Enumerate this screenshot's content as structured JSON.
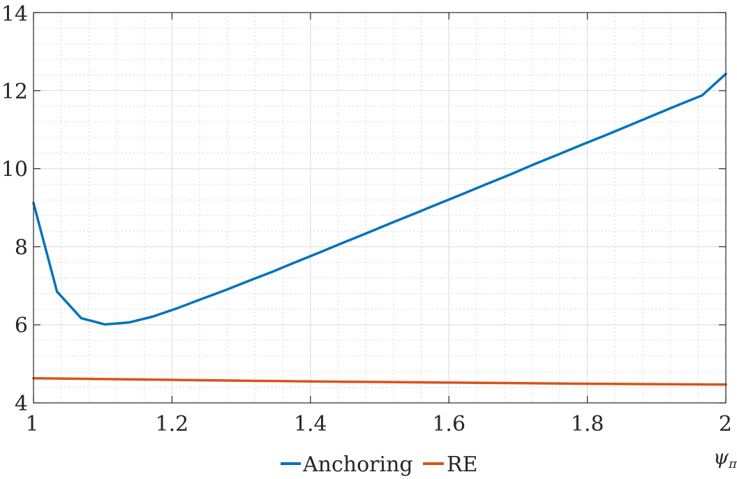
{
  "chart_data": {
    "type": "line",
    "title": "",
    "xlabel": "ψ",
    "xlabel_subscript": "π",
    "ylabel": "",
    "xlim": [
      1,
      2
    ],
    "ylim": [
      4,
      14
    ],
    "x_ticks": [
      1,
      1.2,
      1.4,
      1.6,
      1.8,
      2
    ],
    "x_tick_labels": [
      "1",
      "1.2",
      "1.4",
      "1.6",
      "1.8",
      "2"
    ],
    "y_ticks": [
      4,
      6,
      8,
      10,
      12,
      14
    ],
    "y_tick_labels": [
      "4",
      "6",
      "8",
      "10",
      "12",
      "14"
    ],
    "grid": true,
    "minor_grid": true,
    "legend_position": "bottom-center",
    "series": [
      {
        "name": "Anchoring",
        "color": "#0072BD",
        "x": [
          1.0,
          1.034,
          1.069,
          1.103,
          1.138,
          1.172,
          1.207,
          1.241,
          1.276,
          1.31,
          1.345,
          1.379,
          1.414,
          1.448,
          1.483,
          1.517,
          1.552,
          1.586,
          1.621,
          1.655,
          1.69,
          1.724,
          1.759,
          1.793,
          1.828,
          1.862,
          1.897,
          1.931,
          1.966,
          2.0
        ],
        "y": [
          9.12,
          6.85,
          6.17,
          6.01,
          6.06,
          6.21,
          6.42,
          6.65,
          6.88,
          7.12,
          7.36,
          7.61,
          7.86,
          8.11,
          8.36,
          8.61,
          8.86,
          9.11,
          9.36,
          9.61,
          9.86,
          10.12,
          10.37,
          10.62,
          10.87,
          11.12,
          11.38,
          11.63,
          11.88,
          12.43
        ]
      },
      {
        "name": "RE",
        "color": "#D95319",
        "x": [
          1.0,
          1.2,
          1.4,
          1.6,
          1.8,
          2.0
        ],
        "y": [
          4.63,
          4.59,
          4.55,
          4.52,
          4.49,
          4.47
        ]
      }
    ]
  }
}
